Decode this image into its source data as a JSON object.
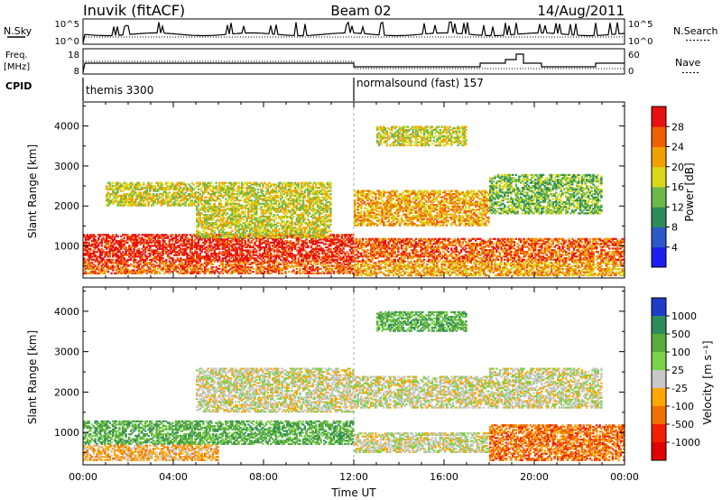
{
  "header": {
    "station": "Inuvik (fitACF)",
    "beam": "Beam 02",
    "date": "14/Aug/2011"
  },
  "strips": {
    "nsky_label": "N.Sky",
    "nsky_ticks": [
      "10^5",
      "10^0"
    ],
    "nsearch_label": "N.Search",
    "nsearch_ticks": [
      "10^5",
      "10^0"
    ],
    "freq_label": "Freq.",
    "freq_unit": "[MHz]",
    "freq_ticks": [
      "18",
      "8"
    ],
    "nave_label": "Nave",
    "nave_ticks": [
      "60",
      "0"
    ],
    "cpid_label": "CPID",
    "cpid_segments": [
      {
        "label": "themis 3300",
        "start_hour": 0
      },
      {
        "label": "normalsound (fast) 157",
        "start_hour": 12
      }
    ]
  },
  "chart_data": [
    {
      "type": "heatmap",
      "parameter": "Power",
      "ylabel": "Slant Range [km]",
      "xlim": [
        0,
        24
      ],
      "ylim": [
        200,
        4600
      ],
      "x_tick_labels": [
        "00:00",
        "04:00",
        "08:00",
        "12:00",
        "16:00",
        "20:00",
        "00:00"
      ],
      "y_ticks": [
        1000,
        2000,
        3000,
        4000
      ],
      "colorbar": {
        "label": "Power [dB]",
        "ticks": [
          "4",
          "8",
          "12",
          "16",
          "20",
          "24",
          "28"
        ],
        "colors": [
          "#1e1ef0",
          "#2d58c8",
          "#2e8c5a",
          "#6cb848",
          "#d8d818",
          "#f0a000",
          "#f06000",
          "#e81010"
        ]
      },
      "echo_regions": [
        {
          "t": [
            0,
            12
          ],
          "r": [
            600,
            1300
          ],
          "level": 7
        },
        {
          "t": [
            0,
            12
          ],
          "r": [
            300,
            600
          ],
          "level": 6
        },
        {
          "t": [
            1,
            5
          ],
          "r": [
            2000,
            2600
          ],
          "level": 4
        },
        {
          "t": [
            5,
            11
          ],
          "r": [
            1200,
            2600
          ],
          "level": 4
        },
        {
          "t": [
            12,
            18
          ],
          "r": [
            1500,
            2400
          ],
          "level": 5
        },
        {
          "t": [
            13,
            17
          ],
          "r": [
            3500,
            4000
          ],
          "level": 4
        },
        {
          "t": [
            12,
            24
          ],
          "r": [
            600,
            1200
          ],
          "level": 6
        },
        {
          "t": [
            12,
            24
          ],
          "r": [
            250,
            600
          ],
          "level": 5
        },
        {
          "t": [
            18,
            23
          ],
          "r": [
            1800,
            2800
          ],
          "level": 3
        }
      ]
    },
    {
      "type": "heatmap",
      "parameter": "Velocity",
      "ylabel": "Slant Range [km]",
      "xlabel": "Time UT",
      "xlim": [
        0,
        24
      ],
      "ylim": [
        200,
        4600
      ],
      "x_tick_labels": [
        "00:00",
        "04:00",
        "08:00",
        "12:00",
        "16:00",
        "20:00",
        "00:00"
      ],
      "y_ticks": [
        1000,
        2000,
        3000,
        4000
      ],
      "colorbar": {
        "label": "Velocity [m s⁻¹]",
        "ticks": [
          "1000",
          "500",
          "100",
          "25",
          "-25",
          "-100",
          "-500",
          "-1000"
        ],
        "colors": [
          "#1e3cc8",
          "#2e8c5a",
          "#5aaa3c",
          "#7ad24a",
          "#c8c8c8",
          "#ffa500",
          "#f07000",
          "#f02000",
          "#e00000"
        ]
      },
      "echo_regions": [
        {
          "t": [
            0,
            12
          ],
          "r": [
            700,
            1300
          ],
          "vel": "100"
        },
        {
          "t": [
            0,
            6
          ],
          "r": [
            300,
            700
          ],
          "vel": "-100"
        },
        {
          "t": [
            5,
            12
          ],
          "r": [
            1500,
            2600
          ],
          "vel": "25"
        },
        {
          "t": [
            12,
            18
          ],
          "r": [
            1600,
            2400
          ],
          "vel": "25"
        },
        {
          "t": [
            13,
            17
          ],
          "r": [
            3500,
            4000
          ],
          "vel": "100"
        },
        {
          "t": [
            12,
            18
          ],
          "r": [
            500,
            1000
          ],
          "vel": "25"
        },
        {
          "t": [
            18,
            24
          ],
          "r": [
            300,
            1200
          ],
          "vel": "-500"
        },
        {
          "t": [
            18,
            23
          ],
          "r": [
            1600,
            2600
          ],
          "vel": "25"
        }
      ]
    }
  ]
}
